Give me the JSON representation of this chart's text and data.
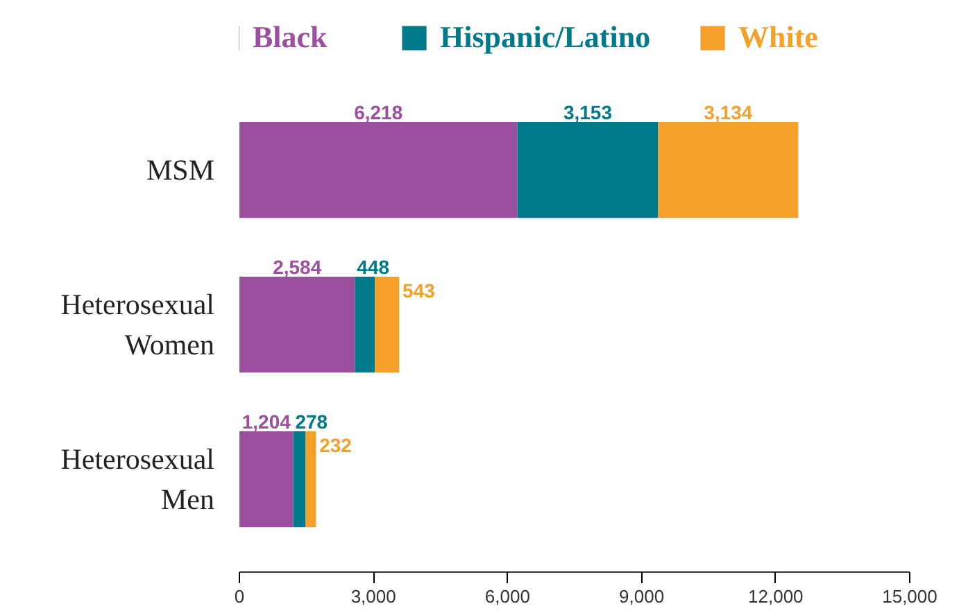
{
  "chart_data": {
    "type": "bar",
    "orientation": "horizontal",
    "stacked": true,
    "legend": "top",
    "grid": false,
    "categories": [
      "MSM",
      "Heterosexual Women",
      "Heterosexual Men"
    ],
    "series": [
      {
        "name": "Black",
        "color": "#9b4f9e",
        "values": [
          6218,
          2584,
          1204
        ],
        "value_labels": [
          "6,218",
          "2,584",
          "1,204"
        ]
      },
      {
        "name": "Hispanic/Latino",
        "color": "#007a8a",
        "values": [
          3153,
          448,
          278
        ],
        "value_labels": [
          "3,153",
          "448",
          "278"
        ]
      },
      {
        "name": "White",
        "color": "#f5a02a",
        "values": [
          3134,
          543,
          232
        ],
        "value_labels": [
          "3,134",
          "543",
          "232"
        ]
      }
    ],
    "xlim": [
      0,
      15000
    ],
    "xticks": [
      {
        "value": 0,
        "label": "0"
      },
      {
        "value": 3000,
        "label": "3,000"
      },
      {
        "value": 6000,
        "label": "6,000"
      },
      {
        "value": 9000,
        "label": "9,000"
      },
      {
        "value": 12000,
        "label": "12,000"
      },
      {
        "value": 15000,
        "label": "15,000"
      }
    ]
  }
}
